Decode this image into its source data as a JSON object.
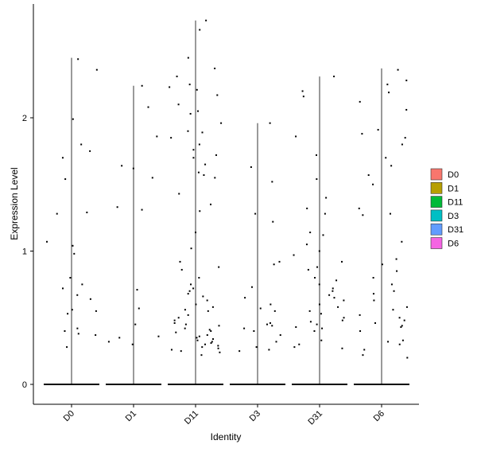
{
  "chart_data": {
    "type": "violin",
    "xlabel": "Identity",
    "ylabel": "Expression Level",
    "ylim": [
      -0.15,
      2.85
    ],
    "yticks": [
      0,
      1,
      2
    ],
    "categories": [
      "D0",
      "D1",
      "D11",
      "D3",
      "D31",
      "D6"
    ],
    "legend_position": "right",
    "colors": {
      "D0": "#F8766D",
      "D1": "#B79F00",
      "D11": "#00BA38",
      "D3": "#00BFC4",
      "D31": "#619CFF",
      "D6": "#F564E3"
    },
    "series": [
      {
        "name": "D0",
        "max": 2.45,
        "points": [
          2.44,
          2.36,
          1.99,
          1.8,
          1.75,
          1.7,
          1.54,
          1.29,
          1.28,
          1.07,
          1.04,
          0.98,
          0.8,
          0.75,
          0.72,
          0.67,
          0.64,
          0.56,
          0.55,
          0.53,
          0.42,
          0.4,
          0.38,
          0.37,
          0.28
        ]
      },
      {
        "name": "D1",
        "max": 2.24,
        "points": [
          2.24,
          2.08,
          1.86,
          1.64,
          1.62,
          1.55,
          1.33,
          1.31,
          0.71,
          0.57,
          0.45,
          0.36,
          0.35,
          0.32,
          0.3
        ]
      },
      {
        "name": "D11",
        "max": 2.73,
        "points": [
          2.73,
          2.66,
          2.45,
          2.37,
          2.31,
          2.25,
          2.23,
          2.21,
          2.17,
          2.1,
          2.05,
          2.03,
          1.96,
          1.9,
          1.89,
          1.85,
          1.8,
          1.76,
          1.72,
          1.7,
          1.65,
          1.59,
          1.57,
          1.55,
          1.43,
          1.35,
          1.3,
          1.14,
          1.02,
          0.92,
          0.88,
          0.86,
          0.8,
          0.75,
          0.72,
          0.7,
          0.68,
          0.66,
          0.63,
          0.6,
          0.58,
          0.56,
          0.55,
          0.52,
          0.5,
          0.48,
          0.46,
          0.45,
          0.44,
          0.42,
          0.41,
          0.4,
          0.39,
          0.37,
          0.36,
          0.35,
          0.34,
          0.33,
          0.32,
          0.31,
          0.3,
          0.29,
          0.28,
          0.27,
          0.26,
          0.25,
          0.24,
          0.22
        ]
      },
      {
        "name": "D3",
        "max": 1.96,
        "points": [
          1.96,
          1.63,
          1.52,
          1.28,
          1.22,
          0.92,
          0.9,
          0.73,
          0.65,
          0.6,
          0.57,
          0.55,
          0.46,
          0.45,
          0.44,
          0.42,
          0.4,
          0.37,
          0.32,
          0.28,
          0.26,
          0.25
        ]
      },
      {
        "name": "D31",
        "max": 2.31,
        "points": [
          2.31,
          2.2,
          2.16,
          1.86,
          1.72,
          1.54,
          1.4,
          1.32,
          1.28,
          1.14,
          1.12,
          1.05,
          1.0,
          0.97,
          0.92,
          0.88,
          0.86,
          0.8,
          0.78,
          0.75,
          0.72,
          0.7,
          0.67,
          0.65,
          0.63,
          0.6,
          0.58,
          0.55,
          0.53,
          0.5,
          0.48,
          0.47,
          0.45,
          0.43,
          0.42,
          0.4,
          0.33,
          0.3,
          0.28,
          0.27
        ]
      },
      {
        "name": "D6",
        "max": 2.37,
        "points": [
          2.36,
          2.28,
          2.25,
          2.19,
          2.12,
          2.06,
          1.91,
          1.88,
          1.85,
          1.8,
          1.7,
          1.64,
          1.57,
          1.5,
          1.32,
          1.28,
          1.27,
          1.07,
          0.94,
          0.9,
          0.85,
          0.8,
          0.75,
          0.7,
          0.68,
          0.63,
          0.58,
          0.56,
          0.52,
          0.5,
          0.48,
          0.46,
          0.44,
          0.43,
          0.4,
          0.33,
          0.32,
          0.3,
          0.26,
          0.22,
          0.2
        ]
      }
    ]
  }
}
